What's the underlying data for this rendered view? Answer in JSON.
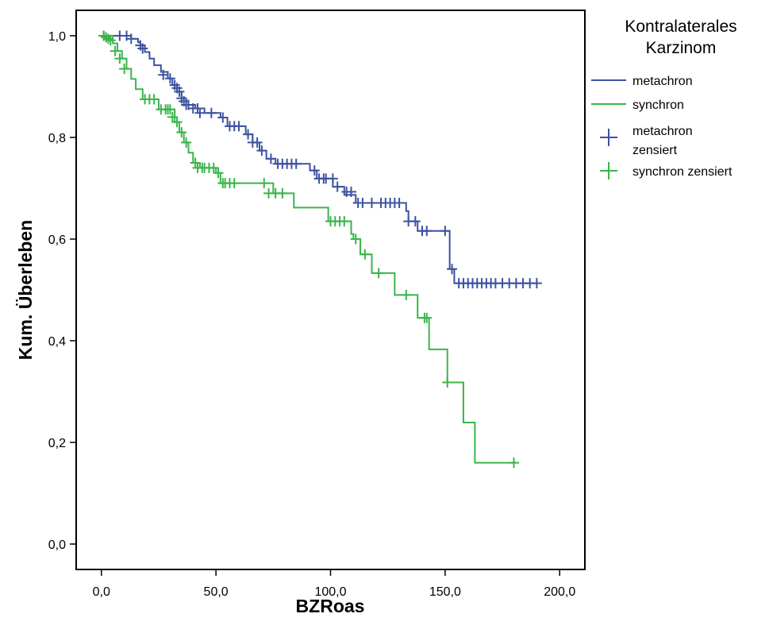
{
  "chart_data": {
    "type": "line",
    "subtype": "kaplan-meier-step",
    "xlabel": "BZRoas",
    "ylabel": "Kum. Überleben",
    "xlim": [
      -11,
      211
    ],
    "ylim": [
      -0.05,
      1.05
    ],
    "x_ticks": [
      {
        "value": 0,
        "label": "0,0"
      },
      {
        "value": 50,
        "label": "50,0"
      },
      {
        "value": 100,
        "label": "100,0"
      },
      {
        "value": 150,
        "label": "150,0"
      },
      {
        "value": 200,
        "label": "200,0"
      }
    ],
    "y_ticks": [
      {
        "value": 0,
        "label": "0,0"
      },
      {
        "value": 0.2,
        "label": "0,2"
      },
      {
        "value": 0.4,
        "label": "0,4"
      },
      {
        "value": 0.6,
        "label": "0,6"
      },
      {
        "value": 0.8,
        "label": "0,8"
      },
      {
        "value": 1.0,
        "label": "1,0"
      }
    ],
    "grid": false,
    "legend": {
      "title_lines": [
        "Kontralaterales",
        "Karzinom"
      ],
      "placement": "right",
      "entries": [
        {
          "kind": "line",
          "series": 0,
          "lines": [
            "metachron"
          ]
        },
        {
          "kind": "line",
          "series": 1,
          "lines": [
            "synchron"
          ]
        },
        {
          "kind": "censor",
          "series": 0,
          "lines": [
            "metachron",
            "zensiert"
          ]
        },
        {
          "kind": "censor",
          "series": 1,
          "lines": [
            "synchron zensiert"
          ]
        }
      ]
    },
    "series": [
      {
        "name": "metachron",
        "color": "#3d52a1",
        "steps": [
          [
            0,
            1.0
          ],
          [
            13,
            0.994
          ],
          [
            16,
            0.987
          ],
          [
            17,
            0.981
          ],
          [
            19,
            0.968
          ],
          [
            21,
            0.955
          ],
          [
            23,
            0.942
          ],
          [
            26,
            0.929
          ],
          [
            29,
            0.916
          ],
          [
            31,
            0.903
          ],
          [
            33,
            0.89
          ],
          [
            35,
            0.877
          ],
          [
            37,
            0.864
          ],
          [
            41,
            0.857
          ],
          [
            45,
            0.848
          ],
          [
            52,
            0.839
          ],
          [
            55,
            0.822
          ],
          [
            63,
            0.806
          ],
          [
            66,
            0.79
          ],
          [
            69,
            0.774
          ],
          [
            72,
            0.758
          ],
          [
            76,
            0.748
          ],
          [
            91,
            0.735
          ],
          [
            94,
            0.719
          ],
          [
            101,
            0.703
          ],
          [
            106,
            0.687
          ],
          [
            111,
            0.671
          ],
          [
            133,
            0.655
          ],
          [
            134,
            0.635
          ],
          [
            138,
            0.616
          ],
          [
            152,
            0.541
          ],
          [
            154,
            0.513
          ],
          [
            190,
            0.513
          ]
        ],
        "censored": [
          [
            1,
            1.0
          ],
          [
            8,
            1.0
          ],
          [
            11,
            1.0
          ],
          [
            13,
            0.994
          ],
          [
            17,
            0.981
          ],
          [
            18,
            0.975
          ],
          [
            27,
            0.923
          ],
          [
            30,
            0.916
          ],
          [
            32,
            0.903
          ],
          [
            33,
            0.897
          ],
          [
            34,
            0.89
          ],
          [
            35,
            0.877
          ],
          [
            36,
            0.871
          ],
          [
            37,
            0.864
          ],
          [
            38,
            0.864
          ],
          [
            40,
            0.857
          ],
          [
            42,
            0.857
          ],
          [
            43,
            0.848
          ],
          [
            48,
            0.848
          ],
          [
            53,
            0.839
          ],
          [
            56,
            0.822
          ],
          [
            58,
            0.822
          ],
          [
            60,
            0.822
          ],
          [
            64,
            0.806
          ],
          [
            66,
            0.79
          ],
          [
            68,
            0.79
          ],
          [
            70,
            0.774
          ],
          [
            74,
            0.758
          ],
          [
            77,
            0.748
          ],
          [
            79,
            0.748
          ],
          [
            81,
            0.748
          ],
          [
            83,
            0.748
          ],
          [
            85,
            0.748
          ],
          [
            93,
            0.735
          ],
          [
            95,
            0.719
          ],
          [
            97,
            0.719
          ],
          [
            98,
            0.719
          ],
          [
            101,
            0.719
          ],
          [
            103,
            0.703
          ],
          [
            107,
            0.693
          ],
          [
            109,
            0.693
          ],
          [
            112,
            0.671
          ],
          [
            114,
            0.671
          ],
          [
            118,
            0.671
          ],
          [
            122,
            0.671
          ],
          [
            124,
            0.671
          ],
          [
            126,
            0.671
          ],
          [
            128,
            0.671
          ],
          [
            130,
            0.671
          ],
          [
            134,
            0.635
          ],
          [
            137,
            0.635
          ],
          [
            140,
            0.616
          ],
          [
            142,
            0.616
          ],
          [
            150,
            0.616
          ],
          [
            153,
            0.541
          ],
          [
            156,
            0.513
          ],
          [
            158,
            0.513
          ],
          [
            160,
            0.513
          ],
          [
            162,
            0.513
          ],
          [
            164,
            0.513
          ],
          [
            166,
            0.513
          ],
          [
            168,
            0.513
          ],
          [
            170,
            0.513
          ],
          [
            172,
            0.513
          ],
          [
            175,
            0.513
          ],
          [
            178,
            0.513
          ],
          [
            181,
            0.513
          ],
          [
            184,
            0.513
          ],
          [
            187,
            0.513
          ],
          [
            190,
            0.513
          ]
        ]
      },
      {
        "name": "synchron",
        "color": "#3ab54a",
        "steps": [
          [
            0,
            1.0
          ],
          [
            5,
            0.985
          ],
          [
            7,
            0.97
          ],
          [
            9,
            0.955
          ],
          [
            11,
            0.935
          ],
          [
            13,
            0.915
          ],
          [
            15,
            0.895
          ],
          [
            18,
            0.875
          ],
          [
            25,
            0.855
          ],
          [
            32,
            0.83
          ],
          [
            34,
            0.81
          ],
          [
            36,
            0.79
          ],
          [
            38,
            0.77
          ],
          [
            40,
            0.75
          ],
          [
            43,
            0.74
          ],
          [
            50,
            0.73
          ],
          [
            52,
            0.71
          ],
          [
            75,
            0.69
          ],
          [
            84,
            0.662
          ],
          [
            99,
            0.635
          ],
          [
            109,
            0.61
          ],
          [
            110,
            0.6
          ],
          [
            113,
            0.57
          ],
          [
            118,
            0.533
          ],
          [
            128,
            0.49
          ],
          [
            138,
            0.445
          ],
          [
            143,
            0.383
          ],
          [
            151,
            0.318
          ],
          [
            158,
            0.239
          ],
          [
            163,
            0.16
          ],
          [
            181,
            0.16
          ]
        ],
        "censored": [
          [
            1,
            1.0
          ],
          [
            2,
            0.997
          ],
          [
            3,
            0.994
          ],
          [
            4,
            0.991
          ],
          [
            6,
            0.97
          ],
          [
            8,
            0.955
          ],
          [
            10,
            0.935
          ],
          [
            19,
            0.875
          ],
          [
            21,
            0.875
          ],
          [
            23,
            0.875
          ],
          [
            26,
            0.855
          ],
          [
            28,
            0.855
          ],
          [
            29,
            0.855
          ],
          [
            30,
            0.855
          ],
          [
            31,
            0.84
          ],
          [
            33,
            0.83
          ],
          [
            35,
            0.81
          ],
          [
            37,
            0.79
          ],
          [
            41,
            0.75
          ],
          [
            42,
            0.74
          ],
          [
            44,
            0.74
          ],
          [
            45,
            0.74
          ],
          [
            47,
            0.74
          ],
          [
            49,
            0.74
          ],
          [
            51,
            0.73
          ],
          [
            53,
            0.71
          ],
          [
            54,
            0.71
          ],
          [
            56,
            0.71
          ],
          [
            58,
            0.71
          ],
          [
            71,
            0.71
          ],
          [
            73,
            0.69
          ],
          [
            76,
            0.69
          ],
          [
            79,
            0.69
          ],
          [
            100,
            0.635
          ],
          [
            102,
            0.635
          ],
          [
            104,
            0.635
          ],
          [
            106,
            0.635
          ],
          [
            111,
            0.6
          ],
          [
            115,
            0.57
          ],
          [
            121,
            0.533
          ],
          [
            133,
            0.49
          ],
          [
            141,
            0.445
          ],
          [
            142,
            0.445
          ],
          [
            151,
            0.318
          ],
          [
            180,
            0.16
          ]
        ]
      }
    ]
  }
}
